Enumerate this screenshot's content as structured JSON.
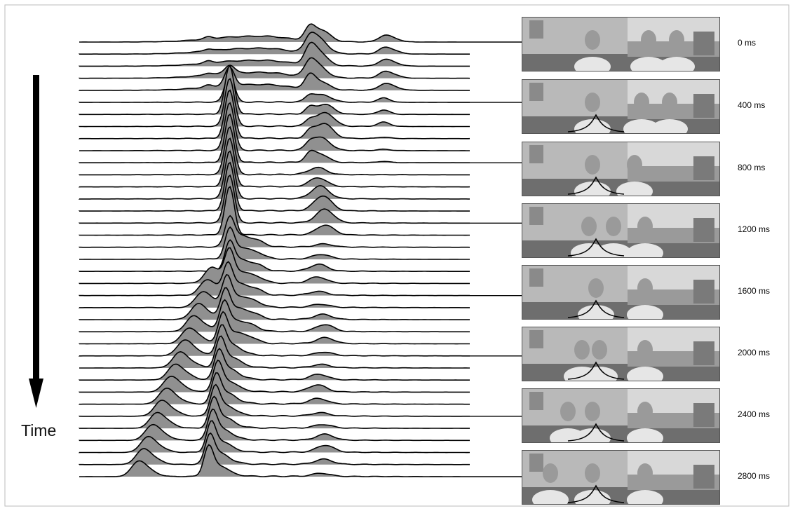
{
  "chart_data": {
    "type": "ridgeline",
    "title": "",
    "xlabel": "",
    "ylabel": "Time",
    "n_ridges": 37,
    "ridges": [
      {
        "center": 0.32,
        "height": 0.28,
        "width": 0.4
      },
      {
        "center": 0.55,
        "height": 0.55,
        "width": 0.2
      },
      {
        "center": 0.55,
        "height": 0.65,
        "width": 0.22
      },
      {
        "center": 0.38,
        "height": 1.2,
        "width": 0.02
      },
      {
        "center": 0.38,
        "height": 2.0,
        "width": 0.02
      },
      {
        "center": 0.38,
        "height": 2.2,
        "width": 0.02
      },
      {
        "center": 0.38,
        "height": 2.4,
        "width": 0.02
      }
    ],
    "frames": [
      {
        "label": "0 ms",
        "bump_x": 0.0
      },
      {
        "label": "400 ms",
        "bump_x": 0.0
      },
      {
        "label": "800 ms",
        "bump_x": 0.0
      },
      {
        "label": "1200 ms",
        "bump_x": 0.0
      },
      {
        "label": "1600 ms",
        "bump_x": 0.0
      },
      {
        "label": "2000 ms",
        "bump_x": 0.0
      },
      {
        "label": "2400 ms",
        "bump_x": 0.0
      },
      {
        "label": "2800 ms",
        "bump_x": 0.0
      }
    ],
    "colors": {
      "fill": "#909090",
      "line": "#000000",
      "background": "#ffffff"
    }
  },
  "axis": {
    "time_label": "Time"
  }
}
